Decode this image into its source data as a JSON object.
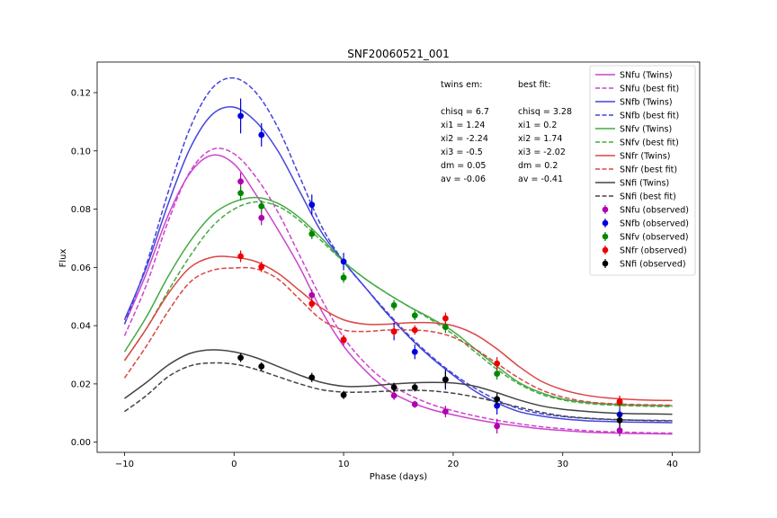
{
  "chart_data": {
    "type": "line",
    "title": "SNF20060521_001",
    "xlabel": "Phase (days)",
    "ylabel": "Flux",
    "xlim": [
      -12.5,
      42.5
    ],
    "ylim": [
      -0.0035,
      0.1305
    ],
    "xticks": [
      -10,
      0,
      10,
      20,
      30,
      40
    ],
    "yticks": [
      0.0,
      0.02,
      0.04,
      0.06,
      0.08,
      0.1,
      0.12
    ],
    "xtick_labels": [
      "−10",
      "0",
      "10",
      "20",
      "30",
      "40"
    ],
    "ytick_labels": [
      "0.00",
      "0.02",
      "0.04",
      "0.06",
      "0.08",
      "0.10",
      "0.12"
    ],
    "grid": false,
    "legend_position": "top-right",
    "series": [
      {
        "name": "SNfu (Twins)",
        "kind": "line",
        "style": "solid",
        "color": "#cc44cc",
        "x": [
          -10,
          -8,
          -6,
          -4,
          -2,
          0,
          2,
          4,
          6,
          8,
          10,
          12,
          14,
          16,
          18,
          20,
          22,
          24,
          26,
          28,
          30,
          32,
          34,
          36,
          38,
          40
        ],
        "y": [
          0.0405,
          0.058,
          0.078,
          0.0925,
          0.0985,
          0.0955,
          0.085,
          0.073,
          0.06,
          0.045,
          0.033,
          0.0245,
          0.018,
          0.014,
          0.0112,
          0.0094,
          0.0078,
          0.0065,
          0.0055,
          0.0046,
          0.004,
          0.0035,
          0.0032,
          0.003,
          0.0029,
          0.0028
        ]
      },
      {
        "name": "SNfu (best fit)",
        "kind": "line",
        "style": "dashed",
        "color": "#cc44cc",
        "x": [
          -10,
          -8,
          -6,
          -4,
          -2,
          0,
          2,
          4,
          6,
          8,
          10,
          12,
          14,
          16,
          18,
          20,
          22,
          24,
          26,
          28,
          30,
          32,
          34,
          36,
          38,
          40
        ],
        "y": [
          0.0365,
          0.054,
          0.076,
          0.093,
          0.1005,
          0.099,
          0.091,
          0.079,
          0.064,
          0.049,
          0.036,
          0.027,
          0.0205,
          0.0162,
          0.013,
          0.0108,
          0.009,
          0.0075,
          0.0063,
          0.0053,
          0.0046,
          0.004,
          0.0036,
          0.0034,
          0.0032,
          0.0031
        ]
      },
      {
        "name": "SNfb (Twins)",
        "kind": "line",
        "style": "solid",
        "color": "#4444dd",
        "x": [
          -10,
          -8,
          -6,
          -4,
          -2,
          0,
          2,
          4,
          6,
          8,
          10,
          12,
          14,
          16,
          18,
          20,
          22,
          24,
          26,
          28,
          30,
          32,
          34,
          36,
          38,
          40
        ],
        "y": [
          0.042,
          0.06,
          0.082,
          0.101,
          0.1125,
          0.115,
          0.11,
          0.1,
          0.086,
          0.072,
          0.062,
          0.053,
          0.044,
          0.036,
          0.029,
          0.023,
          0.0175,
          0.0135,
          0.0105,
          0.009,
          0.008,
          0.0074,
          0.0071,
          0.0069,
          0.0068,
          0.0067
        ]
      },
      {
        "name": "SNfb (best fit)",
        "kind": "line",
        "style": "dashed",
        "color": "#4444dd",
        "x": [
          -10,
          -8,
          -6,
          -4,
          -2,
          0,
          2,
          4,
          6,
          8,
          10,
          12,
          14,
          16,
          18,
          20,
          22,
          24,
          26,
          28,
          30,
          32,
          34,
          36,
          38,
          40
        ],
        "y": [
          0.0405,
          0.061,
          0.086,
          0.108,
          0.1215,
          0.125,
          0.12,
          0.108,
          0.091,
          0.074,
          0.062,
          0.053,
          0.0445,
          0.0365,
          0.0295,
          0.0235,
          0.0185,
          0.0145,
          0.0115,
          0.0098,
          0.0088,
          0.0082,
          0.0078,
          0.0076,
          0.0075,
          0.0074
        ]
      },
      {
        "name": "SNfv (Twins)",
        "kind": "line",
        "style": "solid",
        "color": "#44aa44",
        "x": [
          -10,
          -8,
          -6,
          -4,
          -2,
          0,
          2,
          4,
          6,
          8,
          10,
          12,
          14,
          16,
          18,
          20,
          22,
          24,
          26,
          28,
          30,
          32,
          34,
          36,
          38,
          40
        ],
        "y": [
          0.031,
          0.043,
          0.057,
          0.069,
          0.078,
          0.0825,
          0.084,
          0.082,
          0.077,
          0.07,
          0.062,
          0.056,
          0.051,
          0.0465,
          0.0425,
          0.038,
          0.032,
          0.026,
          0.0205,
          0.017,
          0.0148,
          0.0137,
          0.0131,
          0.0128,
          0.0126,
          0.0125
        ]
      },
      {
        "name": "SNfv (best fit)",
        "kind": "line",
        "style": "dashed",
        "color": "#44aa44",
        "x": [
          -10,
          -8,
          -6,
          -4,
          -2,
          0,
          2,
          4,
          6,
          8,
          10,
          12,
          14,
          16,
          18,
          20,
          22,
          24,
          26,
          28,
          30,
          32,
          34,
          36,
          38,
          40
        ],
        "y": [
          0.028,
          0.039,
          0.052,
          0.064,
          0.074,
          0.08,
          0.0825,
          0.081,
          0.076,
          0.069,
          0.062,
          0.056,
          0.051,
          0.0465,
          0.042,
          0.037,
          0.031,
          0.025,
          0.02,
          0.0165,
          0.0145,
          0.0134,
          0.0128,
          0.0125,
          0.0123,
          0.0122
        ]
      },
      {
        "name": "SNfr (Twins)",
        "kind": "line",
        "style": "solid",
        "color": "#dd4444",
        "x": [
          -10,
          -8,
          -6,
          -4,
          -2,
          0,
          2,
          4,
          6,
          8,
          10,
          12,
          14,
          16,
          18,
          20,
          22,
          24,
          26,
          28,
          30,
          32,
          34,
          36,
          38,
          40
        ],
        "y": [
          0.028,
          0.039,
          0.051,
          0.06,
          0.0635,
          0.0635,
          0.062,
          0.058,
          0.052,
          0.046,
          0.042,
          0.0405,
          0.0405,
          0.041,
          0.041,
          0.04,
          0.037,
          0.032,
          0.026,
          0.021,
          0.018,
          0.0162,
          0.0152,
          0.0147,
          0.0144,
          0.0143
        ]
      },
      {
        "name": "SNfr (best fit)",
        "kind": "line",
        "style": "dashed",
        "color": "#dd4444",
        "x": [
          -10,
          -8,
          -6,
          -4,
          -2,
          0,
          2,
          4,
          6,
          8,
          10,
          12,
          14,
          16,
          18,
          20,
          22,
          24,
          26,
          28,
          30,
          32,
          34,
          36,
          38,
          40
        ],
        "y": [
          0.022,
          0.033,
          0.045,
          0.055,
          0.059,
          0.0598,
          0.0595,
          0.056,
          0.049,
          0.042,
          0.0385,
          0.038,
          0.0385,
          0.0385,
          0.038,
          0.036,
          0.032,
          0.027,
          0.022,
          0.018,
          0.0155,
          0.014,
          0.0133,
          0.013,
          0.0128,
          0.0127
        ]
      },
      {
        "name": "SNfi (Twins)",
        "kind": "line",
        "style": "solid",
        "color": "#444444",
        "x": [
          -10,
          -8,
          -6,
          -4,
          -2,
          0,
          2,
          4,
          6,
          8,
          10,
          12,
          14,
          16,
          18,
          20,
          22,
          24,
          26,
          28,
          30,
          32,
          34,
          36,
          38,
          40
        ],
        "y": [
          0.015,
          0.0205,
          0.0265,
          0.0305,
          0.0317,
          0.031,
          0.029,
          0.026,
          0.023,
          0.0205,
          0.0192,
          0.0192,
          0.0198,
          0.0203,
          0.0205,
          0.0203,
          0.0192,
          0.017,
          0.0145,
          0.0125,
          0.0113,
          0.0106,
          0.0101,
          0.0098,
          0.0097,
          0.0096
        ]
      },
      {
        "name": "SNfi (best fit)",
        "kind": "line",
        "style": "dashed",
        "color": "#444444",
        "x": [
          -10,
          -8,
          -6,
          -4,
          -2,
          0,
          2,
          4,
          6,
          8,
          10,
          12,
          14,
          16,
          18,
          20,
          22,
          24,
          26,
          28,
          30,
          32,
          34,
          36,
          38,
          40
        ],
        "y": [
          0.0105,
          0.016,
          0.0225,
          0.0262,
          0.0272,
          0.0268,
          0.025,
          0.0225,
          0.02,
          0.018,
          0.0172,
          0.0172,
          0.0175,
          0.0178,
          0.0176,
          0.0168,
          0.0155,
          0.0138,
          0.012,
          0.0103,
          0.009,
          0.0083,
          0.0079,
          0.0076,
          0.0074,
          0.0073
        ]
      },
      {
        "name": "SNfu (observed)",
        "kind": "errorbar",
        "color": "#b000b0",
        "x": [
          0.6,
          2.5,
          7.1,
          10.0,
          14.6,
          16.5,
          19.3,
          24.0,
          35.2
        ],
        "y": [
          0.0895,
          0.077,
          0.0505,
          0.035,
          0.016,
          0.013,
          0.0105,
          0.0055,
          0.004
        ],
        "yerr": [
          0.003,
          0.0025,
          0.002,
          0.0018,
          0.0015,
          0.0012,
          0.002,
          0.0025,
          0.002
        ]
      },
      {
        "name": "SNfb (observed)",
        "kind": "errorbar",
        "color": "#0000dd",
        "x": [
          0.6,
          2.5,
          7.1,
          10.0,
          14.6,
          16.5,
          19.3,
          24.0,
          35.2
        ],
        "y": [
          0.112,
          0.1055,
          0.0815,
          0.062,
          0.038,
          0.031,
          0.0215,
          0.0125,
          0.0095
        ],
        "yerr": [
          0.006,
          0.004,
          0.0035,
          0.003,
          0.003,
          0.0025,
          0.0035,
          0.003,
          0.004
        ]
      },
      {
        "name": "SNfv (observed)",
        "kind": "errorbar",
        "color": "#008800",
        "x": [
          0.6,
          2.5,
          7.1,
          10.0,
          14.6,
          16.5,
          19.3,
          24.0,
          35.2
        ],
        "y": [
          0.0855,
          0.081,
          0.0715,
          0.0565,
          0.047,
          0.0435,
          0.0395,
          0.0235,
          0.0135
        ],
        "yerr": [
          0.0025,
          0.002,
          0.0018,
          0.0018,
          0.0018,
          0.0016,
          0.002,
          0.002,
          0.002
        ]
      },
      {
        "name": "SNfr (observed)",
        "kind": "errorbar",
        "color": "#ee0000",
        "x": [
          0.6,
          2.5,
          7.1,
          10.0,
          14.6,
          16.5,
          19.3,
          24.0,
          35.2
        ],
        "y": [
          0.0638,
          0.0602,
          0.0475,
          0.0352,
          0.038,
          0.0385,
          0.0425,
          0.027,
          0.014
        ],
        "yerr": [
          0.002,
          0.0018,
          0.0016,
          0.0016,
          0.0018,
          0.0016,
          0.002,
          0.0022,
          0.002
        ]
      },
      {
        "name": "SNfi (observed)",
        "kind": "errorbar",
        "color": "#000000",
        "x": [
          0.6,
          2.5,
          7.1,
          10.0,
          14.6,
          16.5,
          19.3,
          24.0,
          35.2
        ],
        "y": [
          0.029,
          0.026,
          0.0222,
          0.0162,
          0.0188,
          0.0188,
          0.0215,
          0.0148,
          0.0075
        ],
        "yerr": [
          0.0015,
          0.0014,
          0.0016,
          0.0014,
          0.0016,
          0.0014,
          0.003,
          0.002,
          0.0025
        ]
      }
    ],
    "annotations": [
      {
        "lines": [
          "twins em:",
          "",
          "chisq = 6.7",
          "xi1 = 1.24",
          "xi2 = -2.24",
          "xi3 = -0.5",
          "dm = 0.05",
          "av = -0.06"
        ]
      },
      {
        "lines": [
          "best fit:",
          "",
          "chisq = 3.28",
          "xi1 = 0.2",
          "xi2 = 1.74",
          "xi3 = -2.02",
          "dm = 0.2",
          "av = -0.41"
        ]
      }
    ]
  }
}
